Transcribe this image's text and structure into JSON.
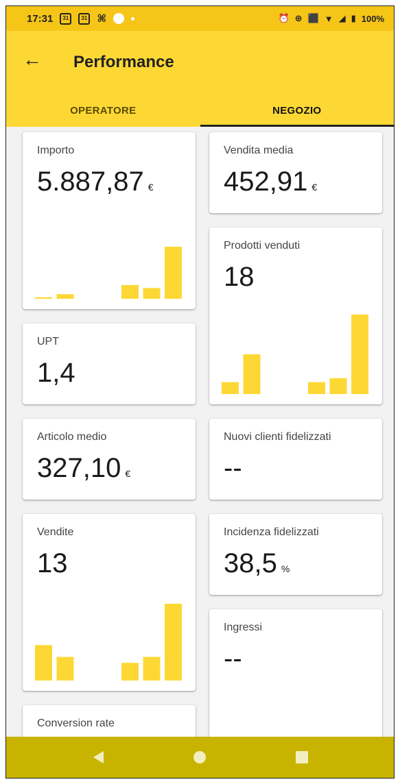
{
  "status": {
    "time": "17:31",
    "cal1": "31",
    "cal2": "31",
    "battery": "100%"
  },
  "header": {
    "title": "Performance"
  },
  "tabs": [
    {
      "label": "OPERATORE"
    },
    {
      "label": "NEGOZIO"
    }
  ],
  "active_tab": 1,
  "accent_color": "#fdd835",
  "bar_color": "#fdd835",
  "cards": {
    "importo": {
      "label": "Importo",
      "value": "5.887,87",
      "unit": "€",
      "chart_data": {
        "type": "bar",
        "values": [
          1,
          3,
          0,
          0,
          9,
          7,
          34
        ]
      }
    },
    "vendita_media": {
      "label": "Vendita media",
      "value": "452,91",
      "unit": "€"
    },
    "upt": {
      "label": "UPT",
      "value": "1,4"
    },
    "prodotti_venduti": {
      "label": "Prodotti venduti",
      "value": "18",
      "chart_data": {
        "type": "bar",
        "values": [
          3,
          10,
          0,
          0,
          3,
          4,
          20
        ]
      }
    },
    "articolo_medio": {
      "label": "Articolo medio",
      "value": "327,10",
      "unit": "€"
    },
    "nuovi_clienti": {
      "label": "Nuovi clienti fidelizzati",
      "value": "--"
    },
    "vendite": {
      "label": "Vendite",
      "value": "13",
      "chart_data": {
        "type": "bar",
        "values": [
          6,
          4,
          0,
          0,
          3,
          4,
          13
        ]
      }
    },
    "incidenza": {
      "label": "Incidenza fidelizzati",
      "value": "38,5",
      "unit": "%"
    },
    "conversion": {
      "label": "Conversion rate"
    },
    "ingressi": {
      "label": "Ingressi",
      "value": "--"
    }
  }
}
